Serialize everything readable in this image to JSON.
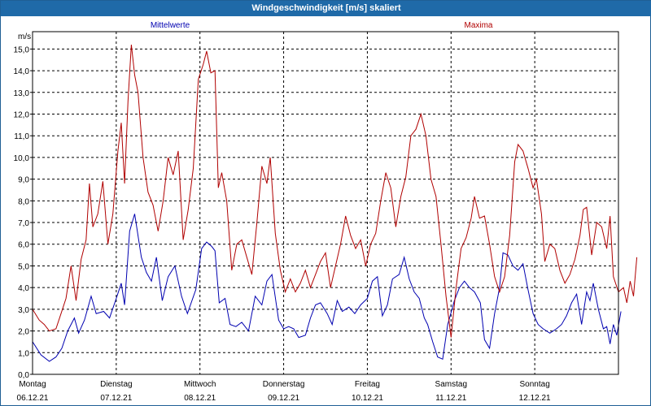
{
  "window": {
    "title": "Windgeschwindigkeit [m/s] skaliert"
  },
  "colors": {
    "titlebar": "#1f6aa8",
    "mittel": "#0000b0",
    "maxima": "#b00000",
    "grid": "#000000"
  },
  "chart_data": {
    "type": "line",
    "title": "Windgeschwindigkeit [m/s] skaliert",
    "ylabel": "m/s",
    "xlabel": "",
    "ylim": [
      0,
      15.8
    ],
    "yticks": [
      "0,0",
      "1,0",
      "2,0",
      "3,0",
      "4,0",
      "5,0",
      "6,0",
      "7,0",
      "8,0",
      "9,0",
      "10,0",
      "11,0",
      "12,0",
      "13,0",
      "14,0",
      "15,0"
    ],
    "x_days": [
      {
        "day": "Montag",
        "date": "06.12.21"
      },
      {
        "day": "Dienstag",
        "date": "07.12.21"
      },
      {
        "day": "Mittwoch",
        "date": "08.12.21"
      },
      {
        "day": "Donnerstag",
        "date": "09.12.21"
      },
      {
        "day": "Freitag",
        "date": "10.12.21"
      },
      {
        "day": "Samstag",
        "date": "11.12.21"
      },
      {
        "day": "Sonntag",
        "date": "12.12.21"
      }
    ],
    "x_unit": "day index (0 = Montag 06.12.21 00:00)",
    "series": [
      {
        "name": "Mittelwerte",
        "color": "#0000b0",
        "points": [
          [
            0.0,
            1.5
          ],
          [
            0.1,
            0.9
          ],
          [
            0.2,
            0.6
          ],
          [
            0.28,
            0.8
          ],
          [
            0.35,
            1.2
          ],
          [
            0.42,
            2.0
          ],
          [
            0.5,
            2.6
          ],
          [
            0.55,
            1.9
          ],
          [
            0.62,
            2.5
          ],
          [
            0.7,
            3.6
          ],
          [
            0.76,
            2.8
          ],
          [
            0.85,
            2.9
          ],
          [
            0.92,
            2.6
          ],
          [
            1.0,
            3.5
          ],
          [
            1.06,
            4.2
          ],
          [
            1.1,
            3.2
          ],
          [
            1.16,
            6.6
          ],
          [
            1.22,
            7.4
          ],
          [
            1.3,
            5.4
          ],
          [
            1.36,
            4.7
          ],
          [
            1.42,
            4.3
          ],
          [
            1.48,
            5.4
          ],
          [
            1.55,
            3.4
          ],
          [
            1.62,
            4.5
          ],
          [
            1.7,
            5.0
          ],
          [
            1.78,
            3.6
          ],
          [
            1.85,
            2.8
          ],
          [
            1.95,
            3.9
          ],
          [
            2.02,
            5.8
          ],
          [
            2.08,
            6.1
          ],
          [
            2.14,
            5.9
          ],
          [
            2.18,
            5.7
          ],
          [
            2.23,
            3.3
          ],
          [
            2.3,
            3.5
          ],
          [
            2.36,
            2.3
          ],
          [
            2.43,
            2.2
          ],
          [
            2.5,
            2.4
          ],
          [
            2.58,
            2.0
          ],
          [
            2.66,
            3.6
          ],
          [
            2.74,
            3.2
          ],
          [
            2.8,
            4.3
          ],
          [
            2.86,
            4.6
          ],
          [
            2.94,
            2.5
          ],
          [
            3.0,
            2.1
          ],
          [
            3.06,
            2.2
          ],
          [
            3.12,
            2.1
          ],
          [
            3.18,
            1.7
          ],
          [
            3.26,
            1.8
          ],
          [
            3.32,
            2.6
          ],
          [
            3.38,
            3.2
          ],
          [
            3.44,
            3.3
          ],
          [
            3.52,
            2.8
          ],
          [
            3.58,
            2.3
          ],
          [
            3.64,
            3.4
          ],
          [
            3.7,
            2.9
          ],
          [
            3.78,
            3.1
          ],
          [
            3.85,
            2.8
          ],
          [
            3.92,
            3.2
          ],
          [
            4.0,
            3.5
          ],
          [
            4.06,
            4.3
          ],
          [
            4.12,
            4.5
          ],
          [
            4.18,
            2.7
          ],
          [
            4.24,
            3.2
          ],
          [
            4.3,
            4.4
          ],
          [
            4.38,
            4.6
          ],
          [
            4.44,
            5.4
          ],
          [
            4.5,
            4.4
          ],
          [
            4.56,
            3.8
          ],
          [
            4.62,
            3.5
          ],
          [
            4.68,
            2.6
          ],
          [
            4.72,
            2.3
          ],
          [
            4.78,
            1.5
          ],
          [
            4.84,
            0.8
          ],
          [
            4.9,
            0.7
          ],
          [
            4.96,
            2.3
          ],
          [
            5.04,
            3.4
          ],
          [
            5.1,
            4.0
          ],
          [
            5.16,
            4.3
          ],
          [
            5.22,
            4.0
          ],
          [
            5.28,
            3.8
          ],
          [
            5.35,
            3.3
          ],
          [
            5.4,
            1.6
          ],
          [
            5.46,
            1.2
          ],
          [
            5.52,
            2.8
          ],
          [
            5.58,
            4.0
          ],
          [
            5.62,
            5.6
          ],
          [
            5.68,
            5.5
          ],
          [
            5.74,
            5.0
          ],
          [
            5.8,
            4.8
          ],
          [
            5.86,
            5.1
          ],
          [
            5.92,
            3.9
          ],
          [
            5.98,
            2.8
          ],
          [
            6.04,
            2.3
          ],
          [
            6.1,
            2.1
          ],
          [
            6.18,
            1.9
          ],
          [
            6.26,
            2.1
          ],
          [
            6.32,
            2.3
          ],
          [
            6.38,
            2.7
          ],
          [
            6.44,
            3.3
          ],
          [
            6.5,
            3.7
          ],
          [
            6.56,
            2.3
          ],
          [
            6.62,
            3.8
          ],
          [
            6.66,
            3.4
          ],
          [
            6.7,
            4.2
          ],
          [
            6.76,
            3.0
          ],
          [
            6.82,
            2.1
          ],
          [
            6.86,
            2.2
          ],
          [
            6.9,
            1.4
          ],
          [
            6.94,
            2.3
          ],
          [
            6.98,
            1.8
          ],
          [
            7.03,
            2.9
          ]
        ]
      },
      {
        "name": "Maxima",
        "color": "#b00000",
        "points": [
          [
            0.0,
            3.0
          ],
          [
            0.08,
            2.5
          ],
          [
            0.14,
            2.3
          ],
          [
            0.2,
            2.0
          ],
          [
            0.28,
            2.1
          ],
          [
            0.34,
            2.8
          ],
          [
            0.4,
            3.5
          ],
          [
            0.46,
            5.0
          ],
          [
            0.52,
            3.4
          ],
          [
            0.58,
            5.3
          ],
          [
            0.64,
            6.2
          ],
          [
            0.68,
            8.8
          ],
          [
            0.72,
            6.8
          ],
          [
            0.78,
            7.4
          ],
          [
            0.84,
            8.9
          ],
          [
            0.9,
            6.0
          ],
          [
            0.96,
            7.4
          ],
          [
            1.02,
            10.3
          ],
          [
            1.06,
            11.6
          ],
          [
            1.1,
            8.8
          ],
          [
            1.14,
            12.6
          ],
          [
            1.18,
            15.2
          ],
          [
            1.22,
            13.8
          ],
          [
            1.26,
            13.0
          ],
          [
            1.32,
            10.0
          ],
          [
            1.38,
            8.4
          ],
          [
            1.44,
            7.8
          ],
          [
            1.5,
            6.6
          ],
          [
            1.56,
            8.0
          ],
          [
            1.62,
            10.0
          ],
          [
            1.68,
            9.2
          ],
          [
            1.74,
            10.3
          ],
          [
            1.8,
            6.2
          ],
          [
            1.86,
            7.6
          ],
          [
            1.92,
            9.5
          ],
          [
            1.98,
            13.6
          ],
          [
            2.04,
            14.3
          ],
          [
            2.08,
            14.9
          ],
          [
            2.13,
            13.9
          ],
          [
            2.18,
            14.0
          ],
          [
            2.22,
            8.6
          ],
          [
            2.26,
            9.3
          ],
          [
            2.32,
            8.0
          ],
          [
            2.38,
            4.8
          ],
          [
            2.44,
            6.0
          ],
          [
            2.5,
            6.2
          ],
          [
            2.56,
            5.4
          ],
          [
            2.62,
            4.6
          ],
          [
            2.68,
            7.0
          ],
          [
            2.74,
            9.6
          ],
          [
            2.8,
            8.8
          ],
          [
            2.84,
            10.0
          ],
          [
            2.9,
            6.5
          ],
          [
            2.96,
            4.8
          ],
          [
            3.02,
            3.8
          ],
          [
            3.08,
            4.4
          ],
          [
            3.14,
            3.8
          ],
          [
            3.2,
            4.2
          ],
          [
            3.26,
            4.8
          ],
          [
            3.32,
            4.0
          ],
          [
            3.38,
            4.6
          ],
          [
            3.44,
            5.2
          ],
          [
            3.5,
            5.6
          ],
          [
            3.56,
            4.0
          ],
          [
            3.62,
            5.0
          ],
          [
            3.68,
            6.0
          ],
          [
            3.74,
            7.3
          ],
          [
            3.8,
            6.4
          ],
          [
            3.86,
            5.8
          ],
          [
            3.92,
            6.2
          ],
          [
            3.98,
            5.0
          ],
          [
            4.04,
            6.0
          ],
          [
            4.1,
            6.5
          ],
          [
            4.16,
            8.0
          ],
          [
            4.22,
            9.3
          ],
          [
            4.28,
            8.6
          ],
          [
            4.34,
            6.8
          ],
          [
            4.4,
            8.2
          ],
          [
            4.46,
            9.1
          ],
          [
            4.52,
            11.0
          ],
          [
            4.58,
            11.3
          ],
          [
            4.64,
            12.0
          ],
          [
            4.7,
            11.0
          ],
          [
            4.76,
            9.0
          ],
          [
            4.82,
            8.2
          ],
          [
            4.88,
            6.0
          ],
          [
            4.94,
            3.6
          ],
          [
            5.0,
            1.7
          ],
          [
            5.06,
            4.0
          ],
          [
            5.12,
            5.8
          ],
          [
            5.18,
            6.3
          ],
          [
            5.24,
            7.2
          ],
          [
            5.28,
            8.2
          ],
          [
            5.34,
            7.2
          ],
          [
            5.4,
            7.3
          ],
          [
            5.46,
            6.0
          ],
          [
            5.52,
            4.5
          ],
          [
            5.58,
            3.8
          ],
          [
            5.64,
            4.5
          ],
          [
            5.7,
            6.4
          ],
          [
            5.76,
            9.8
          ],
          [
            5.8,
            10.6
          ],
          [
            5.86,
            10.3
          ],
          [
            5.92,
            9.5
          ],
          [
            5.98,
            8.6
          ],
          [
            6.02,
            9.0
          ],
          [
            6.08,
            7.4
          ],
          [
            6.12,
            5.2
          ],
          [
            6.18,
            6.0
          ],
          [
            6.24,
            5.8
          ],
          [
            6.3,
            4.8
          ],
          [
            6.36,
            4.2
          ],
          [
            6.42,
            4.6
          ],
          [
            6.48,
            5.3
          ],
          [
            6.54,
            6.4
          ],
          [
            6.58,
            7.6
          ],
          [
            6.62,
            7.7
          ],
          [
            6.68,
            5.5
          ],
          [
            6.74,
            7.0
          ],
          [
            6.8,
            6.8
          ],
          [
            6.86,
            5.8
          ],
          [
            6.9,
            7.3
          ],
          [
            6.94,
            4.5
          ],
          [
            7.0,
            3.8
          ],
          [
            7.06,
            4.0
          ],
          [
            7.1,
            3.3
          ],
          [
            7.14,
            4.3
          ],
          [
            7.18,
            3.6
          ],
          [
            7.22,
            5.4
          ]
        ]
      }
    ],
    "grid": true,
    "legend": "top (labels above plot)"
  }
}
